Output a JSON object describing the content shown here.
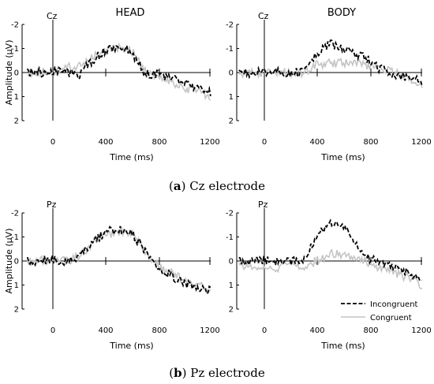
{
  "panels": [
    {
      "id": "cz-head",
      "electrode": "Cz",
      "title": "HEAD"
    },
    {
      "id": "cz-body",
      "electrode": "Cz",
      "title": "BODY"
    },
    {
      "id": "pz-head",
      "electrode": "Pz",
      "title": ""
    },
    {
      "id": "pz-body",
      "electrode": "Pz",
      "title": ""
    }
  ],
  "axes": {
    "ylabel": "Amplitude (μV)",
    "xlabel": "Time (ms)",
    "xticks": [
      0,
      400,
      800,
      1200
    ],
    "yticks": [
      -2,
      -1,
      0,
      1,
      2
    ],
    "xlim": [
      -200,
      1230
    ],
    "ylim": [
      -2,
      2
    ],
    "y_inverted": true
  },
  "captions": [
    {
      "letter": "a",
      "text": "Cz electrode"
    },
    {
      "letter": "b",
      "text": "Pz electrode"
    }
  ],
  "legend": {
    "incongruent": "Incongruent",
    "congruent": "Congruent",
    "placement": "bottom-right"
  },
  "colors": {
    "incongruent": "#000000",
    "congruent": "#c4c4c4",
    "axis": "#000000"
  },
  "chart_data": [
    {
      "type": "line",
      "panel": "cz-head",
      "x": [
        -200,
        -100,
        0,
        100,
        200,
        300,
        400,
        500,
        600,
        700,
        800,
        900,
        1000,
        1100,
        1200
      ],
      "series": [
        {
          "name": "Incongruent",
          "values": [
            0,
            0,
            -0.1,
            0,
            0.1,
            -0.5,
            -0.9,
            -1.0,
            -0.9,
            0,
            0.1,
            0.2,
            0.4,
            0.6,
            0.8
          ]
        },
        {
          "name": "Congruent",
          "values": [
            0,
            0,
            0,
            -0.2,
            -0.3,
            -0.6,
            -0.9,
            -1.0,
            -0.9,
            -0.1,
            0.2,
            0.4,
            0.6,
            0.8,
            1.0
          ]
        }
      ]
    },
    {
      "type": "line",
      "panel": "cz-body",
      "x": [
        -200,
        -100,
        0,
        100,
        200,
        300,
        400,
        500,
        600,
        700,
        800,
        900,
        1000,
        1100,
        1200
      ],
      "series": [
        {
          "name": "Incongruent",
          "values": [
            0,
            0,
            0,
            0,
            0,
            0,
            -0.8,
            -1.2,
            -1.0,
            -0.8,
            -0.5,
            -0.1,
            0.1,
            0.2,
            0.4
          ]
        },
        {
          "name": "Congruent",
          "values": [
            0,
            0,
            0,
            0,
            0,
            0,
            -0.3,
            -0.4,
            -0.4,
            -0.4,
            -0.3,
            -0.2,
            0,
            0.2,
            0.5
          ]
        }
      ]
    },
    {
      "type": "line",
      "panel": "pz-head",
      "x": [
        -200,
        -100,
        0,
        100,
        200,
        300,
        400,
        500,
        600,
        700,
        800,
        900,
        1000,
        1100,
        1200
      ],
      "series": [
        {
          "name": "Incongruent",
          "values": [
            0,
            0,
            -0.1,
            0.1,
            -0.2,
            -0.7,
            -1.2,
            -1.3,
            -1.2,
            -0.4,
            0.2,
            0.6,
            0.9,
            1.1,
            1.2
          ]
        },
        {
          "name": "Congruent",
          "values": [
            0,
            0,
            -0.1,
            0,
            -0.2,
            -0.7,
            -1.1,
            -1.2,
            -1.2,
            -0.4,
            0.2,
            0.5,
            0.8,
            1.0,
            1.2
          ]
        }
      ]
    },
    {
      "type": "line",
      "panel": "pz-body",
      "x": [
        -200,
        -100,
        0,
        100,
        200,
        300,
        400,
        500,
        600,
        700,
        800,
        900,
        1000,
        1100,
        1200
      ],
      "series": [
        {
          "name": "Incongruent",
          "values": [
            0,
            0,
            0,
            0,
            0,
            0,
            -1.0,
            -1.6,
            -1.4,
            -0.8,
            -0.1,
            0.1,
            0.3,
            0.5,
            0.8
          ]
        },
        {
          "name": "Congruent",
          "values": [
            0.2,
            0.3,
            0.2,
            0.3,
            0.2,
            0.2,
            0,
            -0.3,
            -0.3,
            -0.2,
            0.1,
            0.3,
            0.5,
            0.7,
            1.0
          ]
        }
      ]
    }
  ]
}
